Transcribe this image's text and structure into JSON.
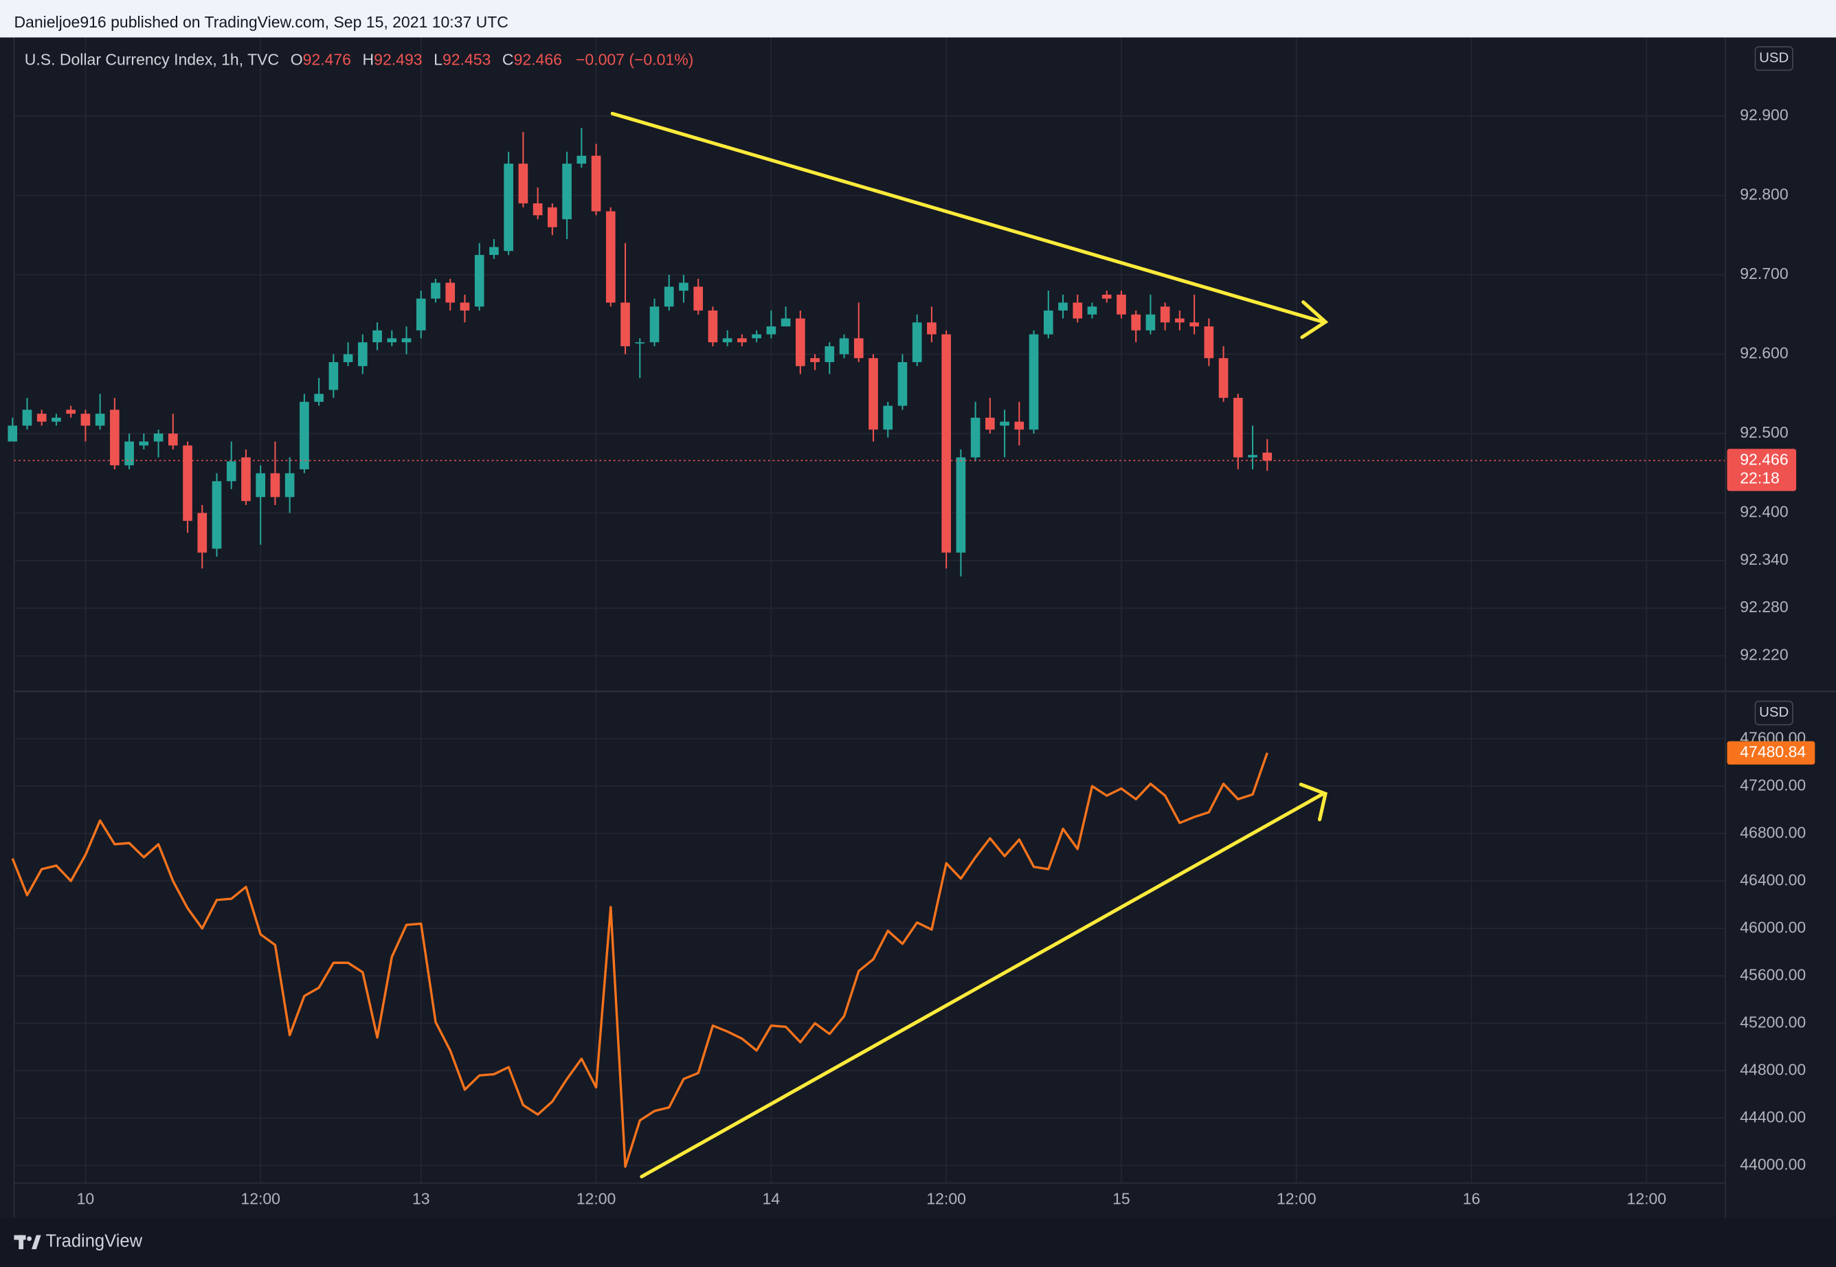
{
  "header": {
    "byline": "Danieljoe916 published on TradingView.com, Sep 15, 2021 10:37 UTC",
    "footer_brand": "TradingView"
  },
  "chart_data": [
    {
      "type": "candlestick",
      "legend": {
        "symbol": "U.S. Dollar Currency Index, 1h, TVC",
        "open_label": "O",
        "open": 92.476,
        "high_label": "H",
        "high": 92.493,
        "low_label": "L",
        "low": 92.453,
        "close_label": "C",
        "close": 92.466,
        "change": "−0.007 (−0.01%)"
      },
      "unit": "USD",
      "up_color": "#26a69a",
      "down_color": "#ef5350",
      "ylim": [
        92.176,
        92.999
      ],
      "yticks": [
        {
          "value": 92.9,
          "label": "92.900"
        },
        {
          "value": 92.8,
          "label": "92.800"
        },
        {
          "value": 92.7,
          "label": "92.700"
        },
        {
          "value": 92.6,
          "label": "92.600"
        },
        {
          "value": 92.5,
          "label": "92.500"
        },
        {
          "value": 92.4,
          "label": "92.400"
        },
        {
          "value": 92.34,
          "label": "92.340"
        },
        {
          "value": 92.28,
          "label": "92.280"
        },
        {
          "value": 92.22,
          "label": "92.220"
        }
      ],
      "grid": true,
      "last_price": 92.466,
      "countdown": "22:18",
      "open": [
        92.49,
        92.51,
        92.525,
        92.515,
        92.53,
        92.525,
        92.51,
        92.53,
        92.46,
        92.485,
        92.49,
        92.5,
        92.485,
        92.4,
        92.355,
        92.44,
        92.47,
        92.42,
        92.45,
        92.42,
        92.455,
        92.54,
        92.555,
        92.59,
        92.585,
        92.615,
        92.615,
        92.615,
        92.63,
        92.67,
        92.69,
        92.665,
        92.66,
        92.725,
        92.73,
        92.84,
        92.79,
        92.785,
        92.77,
        92.84,
        92.85,
        92.78,
        92.665,
        92.615,
        92.615,
        92.66,
        92.68,
        92.685,
        92.655,
        92.615,
        92.62,
        92.62,
        92.625,
        92.635,
        92.645,
        92.595,
        92.59,
        92.6,
        92.62,
        92.595,
        92.505,
        92.535,
        92.59,
        92.64,
        92.625,
        92.35,
        92.47,
        92.52,
        92.51,
        92.515,
        92.505,
        92.625,
        92.655,
        92.665,
        92.65,
        92.675,
        92.675,
        92.65,
        92.63,
        92.66,
        92.645,
        92.64,
        92.635,
        92.595,
        92.545,
        92.47,
        92.476,
        null,
        null,
        null,
        null,
        null,
        null,
        null,
        null,
        null,
        null,
        null,
        null,
        null,
        null,
        null,
        null,
        null,
        null,
        null,
        null,
        null,
        null,
        null,
        null,
        null,
        null,
        null,
        null,
        null,
        null,
        null
      ],
      "high": [
        92.52,
        92.545,
        92.53,
        92.525,
        92.535,
        92.53,
        92.55,
        92.545,
        92.5,
        92.5,
        92.505,
        92.525,
        92.49,
        92.41,
        92.45,
        92.49,
        92.48,
        92.46,
        92.49,
        92.47,
        92.55,
        92.57,
        92.6,
        92.615,
        92.625,
        92.64,
        92.63,
        92.635,
        92.68,
        92.695,
        92.695,
        92.675,
        92.74,
        92.745,
        92.855,
        92.88,
        92.81,
        92.79,
        92.855,
        92.885,
        92.865,
        92.785,
        92.74,
        92.62,
        92.67,
        92.7,
        92.7,
        92.695,
        92.66,
        92.63,
        92.625,
        92.63,
        92.655,
        92.66,
        92.655,
        92.6,
        92.615,
        92.625,
        92.665,
        92.6,
        92.54,
        92.6,
        92.65,
        92.66,
        92.63,
        92.48,
        92.54,
        92.545,
        92.53,
        92.54,
        92.63,
        92.68,
        92.675,
        92.675,
        92.665,
        92.68,
        92.68,
        92.655,
        92.675,
        92.665,
        92.655,
        92.675,
        92.645,
        92.61,
        92.55,
        92.51,
        92.493,
        null,
        null,
        null,
        null,
        null,
        null,
        null,
        null,
        null,
        null,
        null,
        null,
        null,
        null,
        null,
        null,
        null,
        null,
        null,
        null,
        null,
        null,
        null,
        null,
        null,
        null,
        null,
        null,
        null,
        null,
        null
      ],
      "low": [
        92.49,
        92.505,
        92.51,
        92.51,
        92.52,
        92.49,
        92.505,
        92.455,
        92.455,
        92.48,
        92.47,
        92.48,
        92.375,
        92.33,
        92.345,
        92.43,
        92.41,
        92.36,
        92.41,
        92.4,
        92.45,
        92.535,
        92.545,
        92.585,
        92.575,
        92.605,
        92.61,
        92.6,
        92.62,
        92.665,
        92.655,
        92.64,
        92.655,
        92.72,
        92.725,
        92.785,
        92.77,
        92.75,
        92.745,
        92.835,
        92.775,
        92.66,
        92.6,
        92.57,
        92.61,
        92.655,
        92.665,
        92.65,
        92.61,
        92.61,
        92.61,
        92.615,
        92.62,
        92.635,
        92.575,
        92.58,
        92.575,
        92.595,
        92.59,
        92.49,
        92.495,
        92.53,
        92.585,
        92.615,
        92.33,
        92.32,
        92.465,
        92.5,
        92.47,
        92.485,
        92.5,
        92.62,
        92.645,
        92.64,
        92.645,
        92.665,
        92.645,
        92.615,
        92.625,
        92.63,
        92.63,
        92.625,
        92.585,
        92.54,
        92.455,
        92.455,
        92.453,
        null,
        null,
        null,
        null,
        null,
        null,
        null,
        null,
        null,
        null,
        null,
        null,
        null,
        null,
        null,
        null,
        null,
        null,
        null,
        null,
        null,
        null,
        null,
        null,
        null,
        null,
        null,
        null,
        null,
        null,
        null
      ],
      "close": [
        92.51,
        92.53,
        92.515,
        92.52,
        92.525,
        92.51,
        92.525,
        92.46,
        92.49,
        92.49,
        92.5,
        92.485,
        92.39,
        92.35,
        92.44,
        92.465,
        92.415,
        92.45,
        92.42,
        92.45,
        92.54,
        92.55,
        92.59,
        92.6,
        92.615,
        92.63,
        92.62,
        92.62,
        92.67,
        92.69,
        92.665,
        92.655,
        92.725,
        92.735,
        92.84,
        92.79,
        92.775,
        92.76,
        92.84,
        92.85,
        92.78,
        92.665,
        92.61,
        92.615,
        92.66,
        92.685,
        92.69,
        92.655,
        92.615,
        92.62,
        92.615,
        92.625,
        92.635,
        92.645,
        92.585,
        92.59,
        92.61,
        92.62,
        92.595,
        92.505,
        92.535,
        92.59,
        92.64,
        92.625,
        92.35,
        92.47,
        92.52,
        92.505,
        92.515,
        92.505,
        92.625,
        92.655,
        92.665,
        92.645,
        92.66,
        92.67,
        92.65,
        92.63,
        92.65,
        92.64,
        92.64,
        92.635,
        92.595,
        92.545,
        92.47,
        92.473,
        92.466,
        null,
        null,
        null,
        null,
        null,
        null,
        null,
        null,
        null,
        null,
        null,
        null,
        null,
        null,
        null,
        null,
        null,
        null,
        null,
        null,
        null,
        null,
        null,
        null,
        null,
        null,
        null,
        null,
        null,
        null,
        null
      ]
    },
    {
      "type": "line",
      "unit": "USD",
      "categories": [
        null,
        null,
        null,
        null,
        null,
        "10",
        null,
        null,
        null,
        null,
        null,
        null,
        null,
        null,
        null,
        null,
        null,
        "12:00",
        null,
        null,
        null,
        null,
        null,
        null,
        null,
        null,
        null,
        null,
        "13",
        null,
        null,
        null,
        null,
        null,
        null,
        null,
        null,
        null,
        null,
        null,
        "12:00",
        null,
        null,
        null,
        null,
        null,
        null,
        null,
        null,
        null,
        null,
        null,
        "14",
        null,
        null,
        null,
        null,
        null,
        null,
        null,
        null,
        null,
        null,
        null,
        "12:00",
        null,
        null,
        null,
        null,
        null,
        null,
        null,
        null,
        null,
        null,
        null,
        "15",
        null,
        null,
        null,
        null,
        null,
        null,
        null,
        null,
        null,
        null,
        null,
        "12:00",
        null,
        null,
        null,
        null,
        null,
        null,
        null,
        null,
        null,
        null,
        null,
        "16",
        null,
        null,
        null,
        null,
        null,
        null,
        null,
        null,
        null,
        null,
        null,
        "12:00",
        null,
        null,
        null,
        null,
        null
      ],
      "ylim": [
        43857,
        47995
      ],
      "yticks": [
        {
          "value": 47600,
          "label": "47600.00"
        },
        {
          "value": 47200,
          "label": "47200.00"
        },
        {
          "value": 46800,
          "label": "46800.00"
        },
        {
          "value": 46400,
          "label": "46400.00"
        },
        {
          "value": 46000,
          "label": "46000.00"
        },
        {
          "value": 45600,
          "label": "45600.00"
        },
        {
          "value": 45200,
          "label": "45200.00"
        },
        {
          "value": 44800,
          "label": "44800.00"
        },
        {
          "value": 44400,
          "label": "44400.00"
        },
        {
          "value": 44000,
          "label": "44000.00"
        }
      ],
      "grid": true,
      "last_value": 47480.84,
      "series": [
        {
          "color": "#f7731c",
          "values": [
            46590,
            46280,
            46500,
            46530,
            46400,
            46620,
            46910,
            46710,
            46720,
            46600,
            46710,
            46400,
            46170,
            46000,
            46240,
            46250,
            46350,
            45950,
            45860,
            45100,
            45430,
            45500,
            45710,
            45710,
            45630,
            45080,
            45760,
            46030,
            46040,
            45210,
            44970,
            44640,
            44760,
            44770,
            44830,
            44510,
            44430,
            44540,
            44730,
            44900,
            44660,
            46180,
            43990,
            44380,
            44460,
            44490,
            44730,
            44780,
            45180,
            45130,
            45070,
            44970,
            45180,
            45170,
            45040,
            45200,
            45110,
            45260,
            45640,
            45740,
            45980,
            45870,
            46050,
            45990,
            46550,
            46420,
            46600,
            46760,
            46610,
            46750,
            46520,
            46500,
            46840,
            46670,
            47200,
            47120,
            47180,
            47090,
            47220,
            47120,
            46890,
            46940,
            46980,
            47220,
            47090,
            47130,
            47480.84,
            null,
            null,
            null,
            null,
            null,
            null,
            null,
            null,
            null,
            null,
            null,
            null,
            null,
            null,
            null,
            null,
            null,
            null,
            null,
            null,
            null,
            null,
            null,
            null,
            null,
            null,
            null,
            null,
            null,
            null,
            null
          ]
        }
      ]
    }
  ]
}
